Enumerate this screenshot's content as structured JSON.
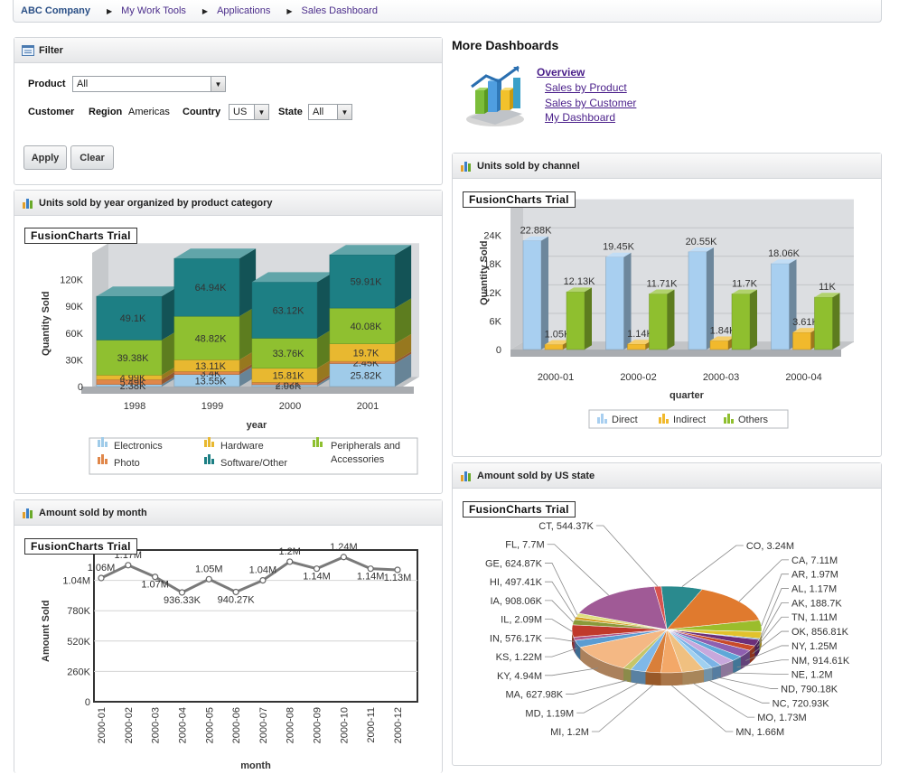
{
  "breadcrumb": [
    "ABC Company",
    "My Work Tools",
    "Applications",
    "Sales Dashboard"
  ],
  "filter": {
    "title": "Filter",
    "product_label": "Product",
    "product_value": "All",
    "customer_label": "Customer",
    "region_label": "Region",
    "region_value": "Americas",
    "country_label": "Country",
    "country_value": "US",
    "state_label": "State",
    "state_value": "All",
    "apply": "Apply",
    "clear": "Clear"
  },
  "more": {
    "title": "More Dashboards",
    "links": [
      "Overview",
      "Sales by Product",
      "Sales by Customer",
      "My Dashboard"
    ]
  },
  "watermark": "FusionCharts Trial",
  "colors": {
    "electronics": "#9fcbe9",
    "photo": "#e0874a",
    "hardware": "#e8b830",
    "software": "#1d7f84",
    "peripherals": "#8fc030",
    "direct": "#a8cff0",
    "indirect": "#f1b92c",
    "others": "#8fbf2f"
  },
  "chart_year": {
    "title": "Units sold by year organized by product category",
    "chart_data": {
      "type": "bar",
      "stacked": true,
      "xlabel": "year",
      "ylabel": "Quantity Sold",
      "yticks": [
        "0",
        "30K",
        "60K",
        "90K",
        "120K"
      ],
      "ylim": [
        0,
        150000
      ],
      "categories": [
        "1998",
        "1999",
        "2000",
        "2001"
      ],
      "series": [
        {
          "name": "Electronics",
          "values": [
            2380,
            13550,
            2060,
            25820
          ],
          "labels": [
            "2.38K",
            "13.55K",
            "2.06K",
            "25.82K"
          ]
        },
        {
          "name": "Photo",
          "values": [
            5490,
            3400,
            2620,
            2450
          ],
          "labels": [
            "5.49K",
            "3.4K",
            "2.62K",
            "2.45K"
          ]
        },
        {
          "name": "Hardware",
          "values": [
            4990,
            13110,
            15810,
            19700
          ],
          "labels": [
            "4.99K",
            "13.11K",
            "15.81K",
            "19.7K"
          ]
        },
        {
          "name": "Peripherals and Accessories",
          "values": [
            39380,
            48820,
            33760,
            40080
          ],
          "labels": [
            "39.38K",
            "48.82K",
            "33.76K",
            "40.08K"
          ]
        },
        {
          "name": "Software/Other",
          "values": [
            49100,
            64940,
            63120,
            59910
          ],
          "labels": [
            "49.1K",
            "64.94K",
            "63.12K",
            "59.91K"
          ]
        }
      ],
      "legend": [
        "Electronics",
        "Hardware",
        "Peripherals and Accessories",
        "Photo",
        "Software/Other"
      ]
    }
  },
  "chart_channel": {
    "title": "Units sold by channel",
    "chart_data": {
      "type": "bar",
      "xlabel": "quarter",
      "ylabel": "Quantity Sold",
      "yticks": [
        "0",
        "6K",
        "12K",
        "18K",
        "24K"
      ],
      "ylim": [
        0,
        30000
      ],
      "categories": [
        "2000-01",
        "2000-02",
        "2000-03",
        "2000-04"
      ],
      "series": [
        {
          "name": "Direct",
          "values": [
            22880,
            19450,
            20550,
            18060
          ],
          "labels": [
            "22.88K",
            "19.45K",
            "20.55K",
            "18.06K"
          ]
        },
        {
          "name": "Indirect",
          "values": [
            1050,
            1140,
            1840,
            3610
          ],
          "labels": [
            "1.05K",
            "1.14K",
            "1.84K",
            "3.61K"
          ]
        },
        {
          "name": "Others",
          "values": [
            12130,
            11710,
            11700,
            11000
          ],
          "labels": [
            "12.13K",
            "11.71K",
            "11.7K",
            "11K"
          ]
        }
      ]
    }
  },
  "chart_month": {
    "title": "Amount sold by month",
    "chart_data": {
      "type": "line",
      "xlabel": "month",
      "ylabel": "Amount Sold",
      "yticks": [
        "0",
        "260K",
        "520K",
        "780K",
        "1.04M"
      ],
      "ylim": [
        0,
        1300000
      ],
      "categories": [
        "2000-01",
        "2000-02",
        "2000-03",
        "2000-04",
        "2000-05",
        "2000-06",
        "2000-07",
        "2000-08",
        "2000-09",
        "2000-10",
        "2000-11",
        "2000-12"
      ],
      "values": [
        1060000,
        1170000,
        1070000,
        936330,
        1050000,
        940270,
        1040000,
        1200000,
        1140000,
        1240000,
        1140000,
        1130000
      ],
      "labels": [
        "1.06M",
        "1.17M",
        "1.07M",
        "936.33K",
        "1.05M",
        "940.27K",
        "1.04M",
        "1.2M",
        "1.14M",
        "1.24M",
        "1.14M",
        "1.13M"
      ]
    }
  },
  "chart_state": {
    "title": "Amount sold by US state",
    "chart_data": {
      "type": "pie",
      "slices": [
        {
          "label": "CO, 3.24M",
          "value": 3240000,
          "color": "#2a8a8e"
        },
        {
          "label": "CA, 7.11M",
          "value": 7110000,
          "color": "#e07a2e"
        },
        {
          "label": "AR, 1.97M",
          "value": 1970000,
          "color": "#9bbd2c"
        },
        {
          "label": "AL, 1.17M",
          "value": 1170000,
          "color": "#e2c22c"
        },
        {
          "label": "AK, 188.7K",
          "value": 188700,
          "color": "#3c7fbf"
        },
        {
          "label": "TN, 1.11M",
          "value": 1110000,
          "color": "#6b2f7a"
        },
        {
          "label": "OK, 856.81K",
          "value": 856810,
          "color": "#c94a2a"
        },
        {
          "label": "NY, 1.25M",
          "value": 1250000,
          "color": "#8e5fb0"
        },
        {
          "label": "NM, 914.61K",
          "value": 914610,
          "color": "#5ea8d8"
        },
        {
          "label": "NE, 1.2M",
          "value": 1200000,
          "color": "#c8a8dc"
        },
        {
          "label": "ND, 790.18K",
          "value": 790180,
          "color": "#7ab3e6"
        },
        {
          "label": "NC, 720.93K",
          "value": 720930,
          "color": "#a0d0f0"
        },
        {
          "label": "MO, 1.73M",
          "value": 1730000,
          "color": "#f0c080"
        },
        {
          "label": "MN, 1.66M",
          "value": 1660000,
          "color": "#f3a868"
        },
        {
          "label": "MI, 1.2M",
          "value": 1200000,
          "color": "#d97f3a"
        },
        {
          "label": "MD, 1.19M",
          "value": 1190000,
          "color": "#7fb8e8"
        },
        {
          "label": "MA, 627.98K",
          "value": 627980,
          "color": "#c6c66a"
        },
        {
          "label": "KY, 4.94M",
          "value": 4940000,
          "color": "#f4b884"
        },
        {
          "label": "KS, 1.22M",
          "value": 1220000,
          "color": "#5a9cd2"
        },
        {
          "label": "IN, 576.17K",
          "value": 576170,
          "color": "#b05a8a"
        },
        {
          "label": "IL, 2.09M",
          "value": 2090000,
          "color": "#c0392b"
        },
        {
          "label": "IA, 908.06K",
          "value": 908060,
          "color": "#8a9a3a"
        },
        {
          "label": "HI, 497.41K",
          "value": 497410,
          "color": "#d4a020"
        },
        {
          "label": "GE, 624.87K",
          "value": 624870,
          "color": "#e0e080"
        },
        {
          "label": "FL, 7.7M",
          "value": 7700000,
          "color": "#a05a96"
        },
        {
          "label": "CT, 544.37K",
          "value": 544370,
          "color": "#d8534f"
        }
      ]
    }
  }
}
